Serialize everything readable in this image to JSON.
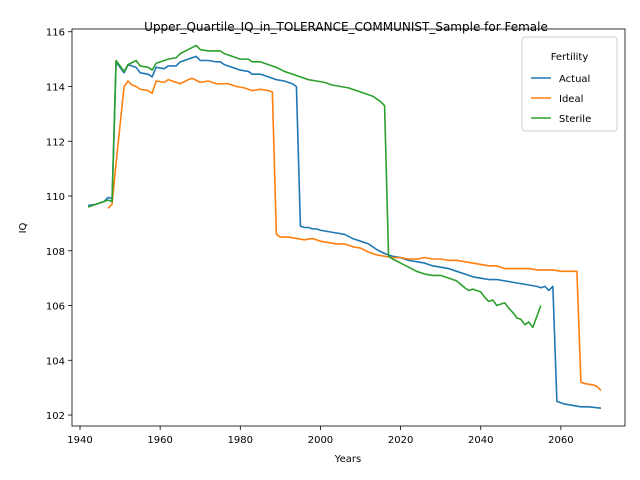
{
  "chart_data": {
    "type": "line",
    "title": "Upper_Quartile_IQ_in_TOLERANCE_COMMUNIST_Sample for Female",
    "xlabel": "Years",
    "ylabel": "IQ",
    "xlim": [
      1938,
      2076
    ],
    "ylim": [
      101.6,
      116.1
    ],
    "xticks": [
      1940,
      1960,
      1980,
      2000,
      2020,
      2040,
      2060
    ],
    "yticks": [
      102,
      104,
      106,
      108,
      110,
      112,
      114,
      116
    ],
    "legend": {
      "title": "Fertility",
      "placement": "top-right"
    },
    "grid": false,
    "series": [
      {
        "name": "Actual",
        "color": "#1f77b4",
        "points": [
          [
            1942,
            109.65
          ],
          [
            1944,
            109.7
          ],
          [
            1946,
            109.8
          ],
          [
            1947,
            109.95
          ],
          [
            1948,
            109.9
          ],
          [
            1949,
            114.9
          ],
          [
            1951,
            114.5
          ],
          [
            1952,
            114.8
          ],
          [
            1954,
            114.7
          ],
          [
            1955,
            114.5
          ],
          [
            1957,
            114.45
          ],
          [
            1958,
            114.35
          ],
          [
            1959,
            114.7
          ],
          [
            1961,
            114.65
          ],
          [
            1962,
            114.75
          ],
          [
            1964,
            114.75
          ],
          [
            1965,
            114.9
          ],
          [
            1967,
            115.0
          ],
          [
            1969,
            115.1
          ],
          [
            1970,
            114.95
          ],
          [
            1972,
            114.95
          ],
          [
            1974,
            114.9
          ],
          [
            1975,
            114.9
          ],
          [
            1976,
            114.8
          ],
          [
            1978,
            114.7
          ],
          [
            1980,
            114.6
          ],
          [
            1982,
            114.55
          ],
          [
            1983,
            114.45
          ],
          [
            1985,
            114.45
          ],
          [
            1987,
            114.35
          ],
          [
            1989,
            114.25
          ],
          [
            1991,
            114.2
          ],
          [
            1993,
            114.1
          ],
          [
            1994,
            114.0
          ],
          [
            1995,
            108.9
          ],
          [
            1996,
            108.85
          ],
          [
            1997,
            108.85
          ],
          [
            1998,
            108.8
          ],
          [
            1999,
            108.8
          ],
          [
            2000,
            108.75
          ],
          [
            2002,
            108.7
          ],
          [
            2004,
            108.65
          ],
          [
            2006,
            108.6
          ],
          [
            2008,
            108.45
          ],
          [
            2010,
            108.35
          ],
          [
            2012,
            108.25
          ],
          [
            2014,
            108.05
          ],
          [
            2016,
            107.9
          ],
          [
            2018,
            107.8
          ],
          [
            2020,
            107.75
          ],
          [
            2022,
            107.65
          ],
          [
            2024,
            107.6
          ],
          [
            2026,
            107.55
          ],
          [
            2028,
            107.45
          ],
          [
            2030,
            107.4
          ],
          [
            2032,
            107.35
          ],
          [
            2034,
            107.25
          ],
          [
            2036,
            107.15
          ],
          [
            2038,
            107.05
          ],
          [
            2040,
            107.0
          ],
          [
            2042,
            106.95
          ],
          [
            2044,
            106.95
          ],
          [
            2046,
            106.9
          ],
          [
            2048,
            106.85
          ],
          [
            2050,
            106.8
          ],
          [
            2052,
            106.75
          ],
          [
            2054,
            106.7
          ],
          [
            2055,
            106.65
          ],
          [
            2056,
            106.7
          ],
          [
            2057,
            106.55
          ],
          [
            2058,
            106.7
          ],
          [
            2059,
            102.5
          ],
          [
            2060,
            102.45
          ],
          [
            2061,
            102.4
          ],
          [
            2063,
            102.35
          ],
          [
            2065,
            102.3
          ],
          [
            2067,
            102.3
          ],
          [
            2070,
            102.25
          ]
        ]
      },
      {
        "name": "Ideal",
        "color": "#ff7f0e",
        "points": [
          [
            1947,
            109.55
          ],
          [
            1948,
            109.7
          ],
          [
            1949,
            111.2
          ],
          [
            1951,
            114.0
          ],
          [
            1952,
            114.2
          ],
          [
            1953,
            114.05
          ],
          [
            1954,
            114.0
          ],
          [
            1955,
            113.9
          ],
          [
            1957,
            113.85
          ],
          [
            1958,
            113.75
          ],
          [
            1959,
            114.2
          ],
          [
            1961,
            114.15
          ],
          [
            1962,
            114.25
          ],
          [
            1964,
            114.15
          ],
          [
            1965,
            114.1
          ],
          [
            1967,
            114.25
          ],
          [
            1968,
            114.3
          ],
          [
            1970,
            114.15
          ],
          [
            1972,
            114.2
          ],
          [
            1974,
            114.1
          ],
          [
            1975,
            114.1
          ],
          [
            1977,
            114.1
          ],
          [
            1979,
            114.0
          ],
          [
            1981,
            113.95
          ],
          [
            1983,
            113.85
          ],
          [
            1985,
            113.9
          ],
          [
            1987,
            113.85
          ],
          [
            1988,
            113.8
          ],
          [
            1989,
            108.6
          ],
          [
            1990,
            108.5
          ],
          [
            1992,
            108.5
          ],
          [
            1994,
            108.45
          ],
          [
            1996,
            108.4
          ],
          [
            1998,
            108.45
          ],
          [
            2000,
            108.35
          ],
          [
            2002,
            108.3
          ],
          [
            2004,
            108.25
          ],
          [
            2006,
            108.25
          ],
          [
            2008,
            108.15
          ],
          [
            2010,
            108.1
          ],
          [
            2012,
            107.95
          ],
          [
            2014,
            107.85
          ],
          [
            2016,
            107.8
          ],
          [
            2018,
            107.75
          ],
          [
            2020,
            107.75
          ],
          [
            2022,
            107.7
          ],
          [
            2024,
            107.7
          ],
          [
            2026,
            107.75
          ],
          [
            2028,
            107.7
          ],
          [
            2030,
            107.7
          ],
          [
            2032,
            107.65
          ],
          [
            2034,
            107.65
          ],
          [
            2036,
            107.6
          ],
          [
            2038,
            107.55
          ],
          [
            2040,
            107.5
          ],
          [
            2042,
            107.45
          ],
          [
            2044,
            107.45
          ],
          [
            2046,
            107.35
          ],
          [
            2048,
            107.35
          ],
          [
            2050,
            107.35
          ],
          [
            2052,
            107.35
          ],
          [
            2054,
            107.3
          ],
          [
            2056,
            107.3
          ],
          [
            2058,
            107.3
          ],
          [
            2060,
            107.25
          ],
          [
            2062,
            107.25
          ],
          [
            2064,
            107.25
          ],
          [
            2065,
            103.2
          ],
          [
            2066,
            103.15
          ],
          [
            2068,
            103.1
          ],
          [
            2069,
            103.05
          ],
          [
            2070,
            102.9
          ]
        ]
      },
      {
        "name": "Sterile",
        "color": "#2ca02c",
        "points": [
          [
            1942,
            109.6
          ],
          [
            1944,
            109.7
          ],
          [
            1946,
            109.8
          ],
          [
            1947,
            109.85
          ],
          [
            1948,
            109.8
          ],
          [
            1949,
            114.95
          ],
          [
            1951,
            114.55
          ],
          [
            1952,
            114.8
          ],
          [
            1954,
            114.95
          ],
          [
            1955,
            114.75
          ],
          [
            1957,
            114.7
          ],
          [
            1958,
            114.6
          ],
          [
            1959,
            114.85
          ],
          [
            1961,
            114.95
          ],
          [
            1962,
            115.0
          ],
          [
            1964,
            115.05
          ],
          [
            1965,
            115.2
          ],
          [
            1967,
            115.35
          ],
          [
            1969,
            115.5
          ],
          [
            1970,
            115.35
          ],
          [
            1972,
            115.3
          ],
          [
            1974,
            115.3
          ],
          [
            1975,
            115.3
          ],
          [
            1976,
            115.2
          ],
          [
            1978,
            115.1
          ],
          [
            1980,
            115.0
          ],
          [
            1982,
            115.0
          ],
          [
            1983,
            114.9
          ],
          [
            1985,
            114.9
          ],
          [
            1987,
            114.8
          ],
          [
            1989,
            114.7
          ],
          [
            1991,
            114.55
          ],
          [
            1993,
            114.45
          ],
          [
            1995,
            114.35
          ],
          [
            1997,
            114.25
          ],
          [
            1999,
            114.2
          ],
          [
            2001,
            114.15
          ],
          [
            2003,
            114.05
          ],
          [
            2005,
            114.0
          ],
          [
            2007,
            113.95
          ],
          [
            2009,
            113.85
          ],
          [
            2011,
            113.75
          ],
          [
            2013,
            113.65
          ],
          [
            2015,
            113.45
          ],
          [
            2016,
            113.3
          ],
          [
            2017,
            107.8
          ],
          [
            2018,
            107.7
          ],
          [
            2020,
            107.55
          ],
          [
            2022,
            107.4
          ],
          [
            2024,
            107.25
          ],
          [
            2026,
            107.15
          ],
          [
            2028,
            107.1
          ],
          [
            2030,
            107.1
          ],
          [
            2032,
            107.0
          ],
          [
            2034,
            106.9
          ],
          [
            2036,
            106.65
          ],
          [
            2037,
            106.55
          ],
          [
            2038,
            106.6
          ],
          [
            2039,
            106.55
          ],
          [
            2040,
            106.5
          ],
          [
            2041,
            106.3
          ],
          [
            2042,
            106.15
          ],
          [
            2043,
            106.2
          ],
          [
            2044,
            106.0
          ],
          [
            2046,
            106.1
          ],
          [
            2047,
            105.9
          ],
          [
            2048,
            105.75
          ],
          [
            2049,
            105.55
          ],
          [
            2050,
            105.5
          ],
          [
            2051,
            105.3
          ],
          [
            2052,
            105.4
          ],
          [
            2053,
            105.2
          ],
          [
            2054,
            105.6
          ],
          [
            2055,
            106.0
          ]
        ]
      }
    ]
  }
}
